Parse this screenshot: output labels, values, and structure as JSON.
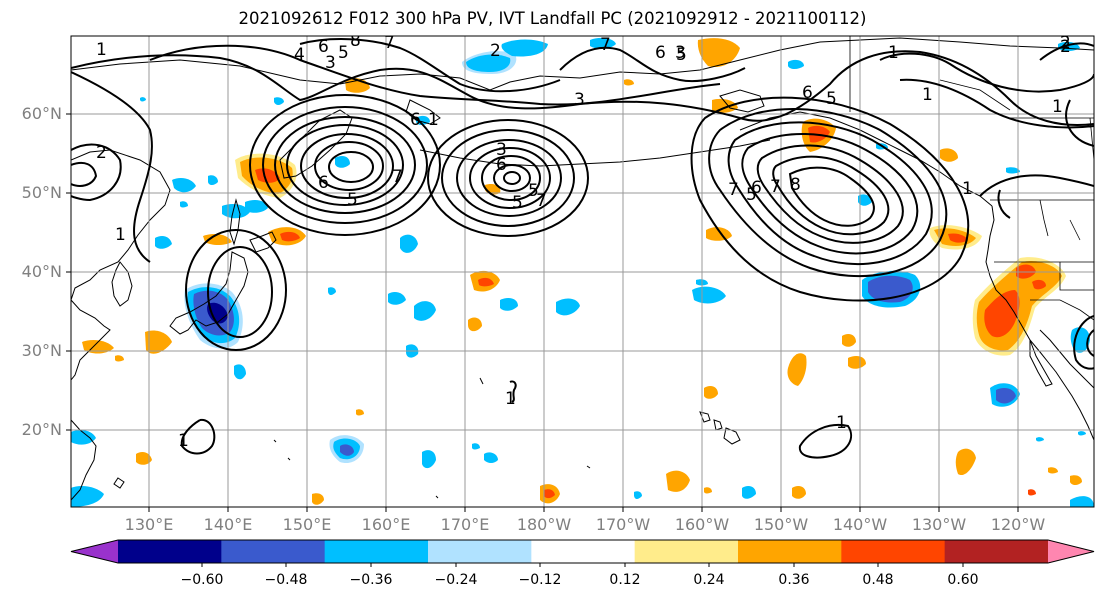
{
  "title": "2021092612 F012 300 hPa PV, IVT Landfall PC (2021092912 - 2021100112)",
  "lat_labels": [
    "60°N",
    "50°N",
    "40°N",
    "30°N",
    "20°N"
  ],
  "lon_labels": [
    "130°E",
    "140°E",
    "150°E",
    "160°E",
    "170°E",
    "180°W",
    "170°W",
    "160°W",
    "150°W",
    "140°W",
    "130°W",
    "120°W"
  ],
  "colorbar": {
    "colors": [
      "#9932cc",
      "#00008b",
      "#3a5acd",
      "#00bfff",
      "#b0e2ff",
      "#ffffff",
      "#ffec8b",
      "#ffa500",
      "#ff4500",
      "#b22222",
      "#ff86b0"
    ],
    "tick_labels": [
      "−0.60",
      "−0.48",
      "−0.36",
      "−0.24",
      "−0.12",
      "0.12",
      "0.24",
      "0.36",
      "0.48",
      "0.60"
    ]
  },
  "contour_labels": [
    "1",
    "1",
    "2",
    "3",
    "4",
    "5",
    "6",
    "7",
    "8",
    "2",
    "3",
    "6",
    "1",
    "6",
    "5",
    "7",
    "6",
    "5",
    "3",
    "5",
    "7",
    "3",
    "5",
    "6",
    "7",
    "1",
    "2",
    "6",
    "5",
    "7",
    "5",
    "6",
    "7",
    "8",
    "1",
    "1",
    "1",
    "1",
    "2",
    "1",
    "1"
  ]
}
